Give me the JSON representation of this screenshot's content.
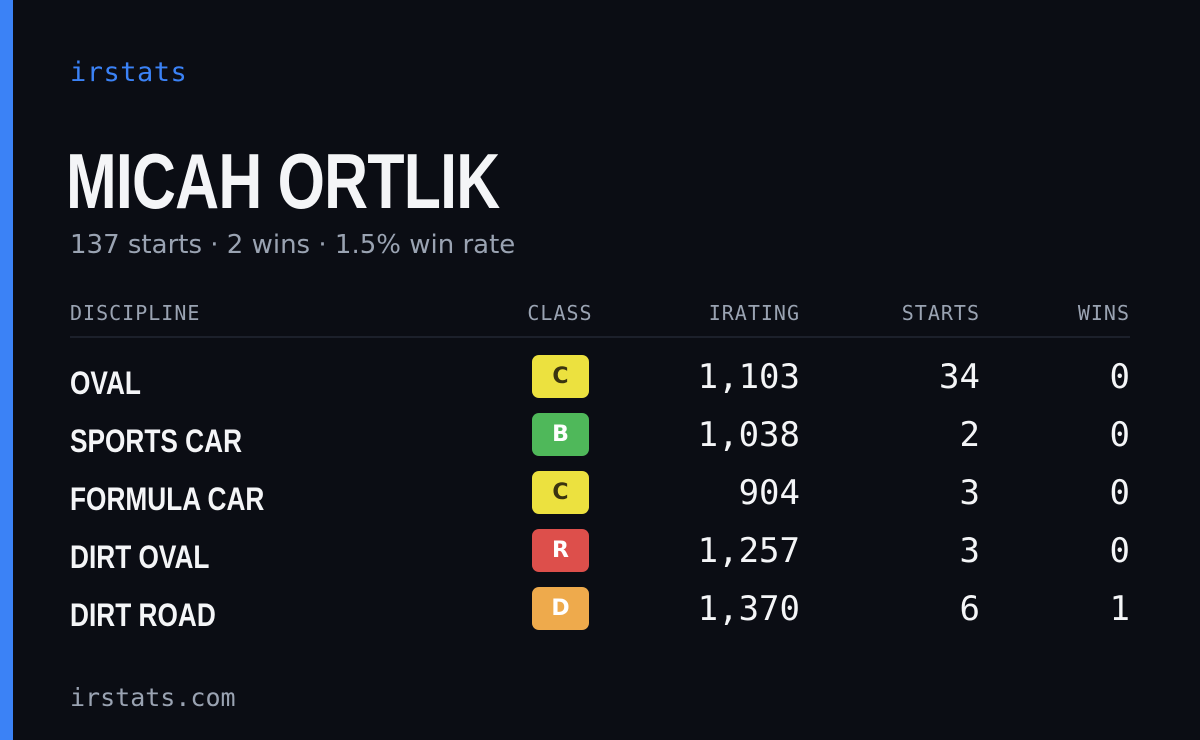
{
  "brand": "irstats",
  "driver": {
    "name": "MICAH ORTLIK",
    "summary": "137 starts · 2 wins · 1.5% win rate"
  },
  "table": {
    "headers": {
      "discipline": "DISCIPLINE",
      "class": "CLASS",
      "irating": "IRATING",
      "starts": "STARTS",
      "wins": "WINS"
    },
    "rows": [
      {
        "discipline": "OVAL",
        "class": "C",
        "class_color": "#ece13f",
        "class_text_color": "#3a3410",
        "irating": "1,103",
        "starts": "34",
        "wins": "0"
      },
      {
        "discipline": "SPORTS CAR",
        "class": "B",
        "class_color": "#4fb85a",
        "class_text_color": "#ffffff",
        "irating": "1,038",
        "starts": "2",
        "wins": "0"
      },
      {
        "discipline": "FORMULA CAR",
        "class": "C",
        "class_color": "#ece13f",
        "class_text_color": "#3a3410",
        "irating": "904",
        "starts": "3",
        "wins": "0"
      },
      {
        "discipline": "DIRT OVAL",
        "class": "R",
        "class_color": "#dd4f4b",
        "class_text_color": "#ffffff",
        "irating": "1,257",
        "starts": "3",
        "wins": "0"
      },
      {
        "discipline": "DIRT ROAD",
        "class": "D",
        "class_color": "#eeaa4c",
        "class_text_color": "#ffffff",
        "irating": "1,370",
        "starts": "6",
        "wins": "1"
      }
    ]
  },
  "footer": "irstats.com",
  "colors": {
    "accent": "#3b82f6",
    "background": "#0b0d14",
    "muted": "#9aa3b2",
    "text": "#f4f5f7"
  }
}
